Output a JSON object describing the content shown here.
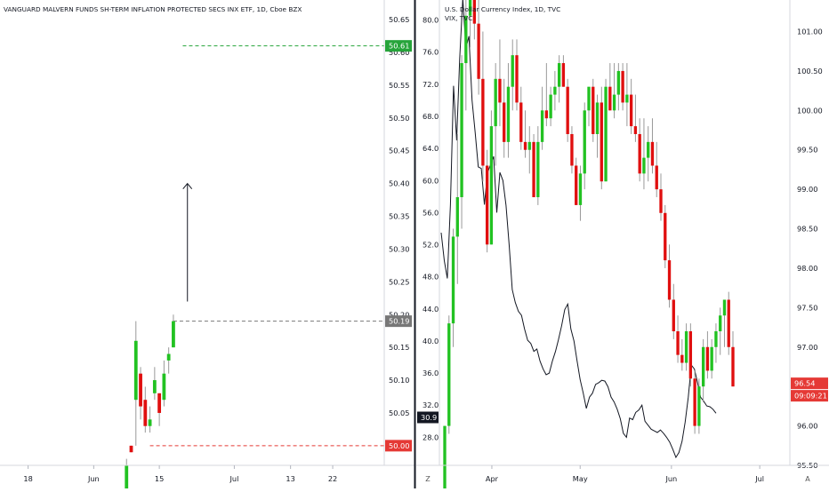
{
  "chart_data": [
    {
      "type": "candlestick",
      "title": "VANGUARD MALVERN FUNDS SH-TERM INFLATION PROTECTED SECS INX ETF, 1D, Cboe BZX",
      "y_ticks": [
        "50.65",
        "50.60",
        "50.55",
        "50.50",
        "50.45",
        "50.40",
        "50.35",
        "50.30",
        "50.25",
        "50.20",
        "50.15",
        "50.10",
        "50.05"
      ],
      "ylim": [
        49.97,
        50.68
      ],
      "x_ticks": [
        {
          "label": "18",
          "day": 0
        },
        {
          "label": "Jun",
          "day": 14
        },
        {
          "label": "15",
          "day": 28
        },
        {
          "label": "Jul",
          "day": 44
        },
        {
          "label": "13",
          "day": 56
        },
        {
          "label": "22",
          "day": 65
        }
      ],
      "xlim": [
        -6,
        76
      ],
      "candles": [
        {
          "day": 21,
          "open": 49.93,
          "high": 49.98,
          "low": 49.9,
          "close": 49.97
        },
        {
          "day": 22,
          "open": 50.0,
          "high": 50.0,
          "low": 49.99,
          "close": 49.99
        },
        {
          "day": 23,
          "open": 50.07,
          "high": 50.19,
          "low": 50.0,
          "close": 50.16
        },
        {
          "day": 24,
          "open": 50.11,
          "high": 50.12,
          "low": 50.04,
          "close": 50.06
        },
        {
          "day": 25,
          "open": 50.07,
          "high": 50.09,
          "low": 50.02,
          "close": 50.03
        },
        {
          "day": 26,
          "open": 50.03,
          "high": 50.06,
          "low": 50.02,
          "close": 50.04
        },
        {
          "day": 27,
          "open": 50.08,
          "high": 50.12,
          "low": 50.07,
          "close": 50.1
        },
        {
          "day": 28,
          "open": 50.08,
          "high": 50.08,
          "low": 50.03,
          "close": 50.05
        },
        {
          "day": 29,
          "open": 50.07,
          "high": 50.13,
          "low": 50.06,
          "close": 50.11
        },
        {
          "day": 30,
          "open": 50.13,
          "high": 50.15,
          "low": 50.11,
          "close": 50.14
        },
        {
          "day": 31,
          "open": 50.15,
          "high": 50.2,
          "low": 50.15,
          "close": 50.19
        }
      ],
      "levels": [
        {
          "label": "50.61",
          "value": 50.61,
          "color": "#26a43a"
        },
        {
          "label": "50.19",
          "value": 50.19,
          "color": "#777777"
        },
        {
          "label": "50.00",
          "value": 50.0,
          "color": "#e53935"
        }
      ],
      "arrow": {
        "day": 34,
        "from": 50.22,
        "to": 50.4
      }
    },
    {
      "type": "candlestick",
      "title": "U.S. Dollar Currency Index, 1D, TVC",
      "y_ticks": [
        "101.00",
        "100.50",
        "100.00",
        "99.50",
        "99.00",
        "98.50",
        "98.00",
        "97.50",
        "97.00",
        "96.00",
        "95.50"
      ],
      "ylim": [
        95.5,
        101.4
      ],
      "x_ticks": [
        {
          "label": "Apr",
          "month_day": 15
        },
        {
          "label": "May",
          "month_day": 45
        },
        {
          "label": "Jun",
          "month_day": 76
        },
        {
          "label": "Jul",
          "month_day": 106
        }
      ],
      "xlim": [
        -1,
        112
      ],
      "candles": [
        {
          "o": 95.2,
          "h": 96.0,
          "l": 95.1,
          "c": 96.0
        },
        {
          "o": 96.0,
          "h": 97.4,
          "l": 95.9,
          "c": 97.3
        },
        {
          "o": 97.3,
          "h": 98.5,
          "l": 97.0,
          "c": 98.4
        },
        {
          "o": 98.4,
          "h": 99.7,
          "l": 97.8,
          "c": 98.9
        },
        {
          "o": 98.9,
          "h": 100.7,
          "l": 98.5,
          "c": 100.6
        },
        {
          "o": 100.6,
          "h": 101.5,
          "l": 100.0,
          "c": 101.2
        },
        {
          "o": 101.2,
          "h": 101.6,
          "l": 100.8,
          "c": 101.4
        },
        {
          "o": 101.4,
          "h": 101.6,
          "l": 100.9,
          "c": 101.1
        },
        {
          "o": 101.1,
          "h": 101.4,
          "l": 100.2,
          "c": 100.4
        },
        {
          "o": 100.4,
          "h": 101.0,
          "l": 99.1,
          "c": 99.3
        },
        {
          "o": 99.3,
          "h": 99.5,
          "l": 98.2,
          "c": 98.3
        },
        {
          "o": 98.3,
          "h": 100.0,
          "l": 98.3,
          "c": 99.8
        },
        {
          "o": 99.8,
          "h": 100.6,
          "l": 99.3,
          "c": 100.4
        },
        {
          "o": 100.4,
          "h": 100.9,
          "l": 99.8,
          "c": 100.1
        },
        {
          "o": 100.1,
          "h": 100.4,
          "l": 99.4,
          "c": 99.6
        },
        {
          "o": 99.6,
          "h": 100.6,
          "l": 99.4,
          "c": 100.3
        },
        {
          "o": 100.3,
          "h": 100.9,
          "l": 100.0,
          "c": 100.7
        },
        {
          "o": 100.7,
          "h": 100.9,
          "l": 100.0,
          "c": 100.1
        },
        {
          "o": 100.1,
          "h": 100.3,
          "l": 99.5,
          "c": 99.6
        },
        {
          "o": 99.6,
          "h": 100.0,
          "l": 99.4,
          "c": 99.5
        },
        {
          "o": 99.5,
          "h": 99.8,
          "l": 99.2,
          "c": 99.6
        },
        {
          "o": 99.6,
          "h": 99.7,
          "l": 98.9,
          "c": 98.9
        },
        {
          "o": 98.9,
          "h": 99.8,
          "l": 98.8,
          "c": 99.6
        },
        {
          "o": 99.6,
          "h": 100.3,
          "l": 99.5,
          "c": 100.0
        },
        {
          "o": 100.0,
          "h": 100.6,
          "l": 99.8,
          "c": 99.9
        },
        {
          "o": 99.9,
          "h": 100.3,
          "l": 99.8,
          "c": 100.2
        },
        {
          "o": 100.2,
          "h": 100.5,
          "l": 100.0,
          "c": 100.3
        },
        {
          "o": 100.3,
          "h": 100.7,
          "l": 100.1,
          "c": 100.6
        },
        {
          "o": 100.6,
          "h": 100.7,
          "l": 100.3,
          "c": 100.3
        },
        {
          "o": 100.3,
          "h": 100.4,
          "l": 99.6,
          "c": 99.7
        },
        {
          "o": 99.7,
          "h": 99.8,
          "l": 99.2,
          "c": 99.3
        },
        {
          "o": 99.3,
          "h": 99.4,
          "l": 98.8,
          "c": 98.8
        },
        {
          "o": 98.8,
          "h": 99.3,
          "l": 98.6,
          "c": 99.2
        },
        {
          "o": 99.2,
          "h": 100.1,
          "l": 99.0,
          "c": 100.0
        },
        {
          "o": 100.0,
          "h": 100.3,
          "l": 99.8,
          "c": 100.3
        },
        {
          "o": 100.3,
          "h": 100.4,
          "l": 99.6,
          "c": 99.7
        },
        {
          "o": 99.7,
          "h": 100.2,
          "l": 99.4,
          "c": 100.1
        },
        {
          "o": 100.1,
          "h": 100.3,
          "l": 99.0,
          "c": 99.1
        },
        {
          "o": 99.1,
          "h": 100.4,
          "l": 99.1,
          "c": 100.3
        },
        {
          "o": 100.3,
          "h": 100.6,
          "l": 100.0,
          "c": 100.0
        },
        {
          "o": 100.0,
          "h": 100.6,
          "l": 99.9,
          "c": 100.2
        },
        {
          "o": 100.2,
          "h": 100.6,
          "l": 100.0,
          "c": 100.5
        },
        {
          "o": 100.5,
          "h": 100.6,
          "l": 100.0,
          "c": 100.1
        },
        {
          "o": 100.1,
          "h": 100.6,
          "l": 99.8,
          "c": 100.2
        },
        {
          "o": 100.2,
          "h": 100.4,
          "l": 99.7,
          "c": 99.8
        },
        {
          "o": 99.8,
          "h": 100.2,
          "l": 99.6,
          "c": 99.7
        },
        {
          "o": 99.7,
          "h": 99.9,
          "l": 99.1,
          "c": 99.2
        },
        {
          "o": 99.2,
          "h": 99.9,
          "l": 99.0,
          "c": 99.4
        },
        {
          "o": 99.4,
          "h": 99.8,
          "l": 99.1,
          "c": 99.6
        },
        {
          "o": 99.6,
          "h": 99.9,
          "l": 99.2,
          "c": 99.3
        },
        {
          "o": 99.3,
          "h": 99.6,
          "l": 98.9,
          "c": 99.0
        },
        {
          "o": 99.0,
          "h": 99.2,
          "l": 98.6,
          "c": 98.7
        },
        {
          "o": 98.7,
          "h": 98.8,
          "l": 98.0,
          "c": 98.1
        },
        {
          "o": 98.1,
          "h": 98.3,
          "l": 97.5,
          "c": 97.6
        },
        {
          "o": 97.6,
          "h": 97.8,
          "l": 97.1,
          "c": 97.2
        },
        {
          "o": 97.2,
          "h": 97.4,
          "l": 96.8,
          "c": 96.9
        },
        {
          "o": 96.9,
          "h": 97.1,
          "l": 96.7,
          "c": 96.8
        },
        {
          "o": 96.8,
          "h": 97.3,
          "l": 96.7,
          "c": 97.2
        },
        {
          "o": 97.2,
          "h": 97.3,
          "l": 96.5,
          "c": 96.6
        },
        {
          "o": 96.6,
          "h": 96.7,
          "l": 95.9,
          "c": 96.0
        },
        {
          "o": 96.0,
          "h": 96.6,
          "l": 95.9,
          "c": 96.5
        },
        {
          "o": 96.5,
          "h": 97.1,
          "l": 96.3,
          "c": 97.0
        },
        {
          "o": 97.0,
          "h": 97.2,
          "l": 96.6,
          "c": 96.7
        },
        {
          "o": 96.7,
          "h": 97.1,
          "l": 96.6,
          "c": 97.0
        },
        {
          "o": 97.0,
          "h": 97.3,
          "l": 96.8,
          "c": 97.2
        },
        {
          "o": 97.2,
          "h": 97.5,
          "l": 96.9,
          "c": 97.4
        },
        {
          "o": 97.4,
          "h": 97.6,
          "l": 97.0,
          "c": 97.6
        },
        {
          "o": 97.6,
          "h": 97.7,
          "l": 96.9,
          "c": 97.0
        },
        {
          "o": 97.0,
          "h": 97.2,
          "l": 96.5,
          "c": 96.5
        }
      ],
      "last_price": "96.54",
      "countdown": "09:09:21",
      "overlay": {
        "name": "VIX, TVC",
        "value_label": "30.9",
        "left_ticks": [
          "80.0",
          "76.0",
          "72.0",
          "68.0",
          "64.0",
          "60.0",
          "56.0",
          "52.0",
          "48.0",
          "44.0",
          "40.0",
          "36.0",
          "32.0",
          "28.0"
        ],
        "ylim": [
          24.5,
          82.5
        ],
        "values": [
          53.5,
          50.0,
          47.8,
          57.0,
          71.8,
          65.0,
          75.2,
          82.7,
          76.5,
          78.0,
          70.0,
          66.0,
          61.7,
          61.5,
          57.0,
          61.0,
          62.0,
          63.0,
          56.0,
          61.0,
          60.0,
          56.9,
          52.0,
          46.4,
          44.8,
          43.7,
          43.2,
          41.5,
          40.1,
          39.7,
          38.7,
          39.0,
          37.5,
          36.5,
          35.8,
          36.0,
          37.5,
          38.7,
          40.2,
          41.9,
          43.9,
          44.6,
          41.5,
          40.0,
          37.5,
          35.2,
          33.5,
          31.6,
          33.0,
          33.5,
          34.6,
          34.8,
          35.1,
          35.0,
          34.3,
          33.0,
          32.4,
          31.5,
          30.3,
          28.5,
          28.0,
          30.4,
          30.2,
          31.1,
          31.4,
          32.0,
          30.0,
          29.5,
          29.0,
          28.8,
          28.6,
          28.9,
          28.5,
          28.0,
          27.4,
          26.5,
          25.5,
          26.1,
          27.5,
          29.9,
          33.0,
          37.0,
          36.5,
          34.8,
          33.0,
          32.5,
          31.9,
          31.8,
          31.5,
          31.0
        ]
      }
    }
  ],
  "left_axis": {
    "badges": [
      "50.61",
      "50.19",
      "50.00"
    ],
    "mode_button": "Z"
  },
  "right_axis": {
    "badges": [
      "96.54",
      "09:09:21"
    ],
    "mode_button": "A"
  }
}
